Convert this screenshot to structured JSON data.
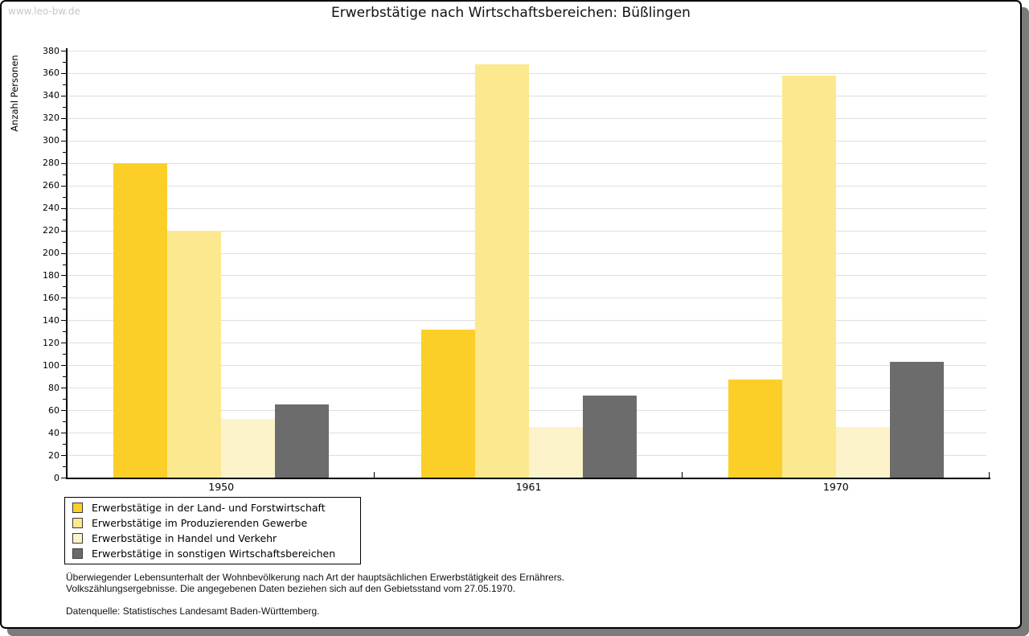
{
  "watermark": "www.leo-bw.de",
  "title": "Erwerbstätige nach Wirtschaftsbereichen: Büßlingen",
  "chart_data": {
    "type": "bar",
    "title": "Erwerbstätige nach Wirtschaftsbereichen: Büßlingen",
    "xlabel": "",
    "ylabel": "Anzahl Personen",
    "ylim": [
      0,
      380
    ],
    "ytick_step": 20,
    "yminor_step": 10,
    "grid": "horizontal-major",
    "legend_position": "bottom-left",
    "categories": [
      "1950",
      "1961",
      "1970"
    ],
    "series": [
      {
        "name": "Erwerbstätige in der Land- und Forstwirtschaft",
        "color": "#fbcf27",
        "values": [
          280,
          132,
          87
        ]
      },
      {
        "name": "Erwerbstätige im Produzierenden Gewerbe",
        "color": "#fce88f",
        "values": [
          220,
          368,
          358
        ]
      },
      {
        "name": "Erwerbstätige in Handel und Verkehr",
        "color": "#fdf3cb",
        "values": [
          52,
          45,
          45
        ]
      },
      {
        "name": "Erwerbstätige in sonstigen Wirtschaftsbereichen",
        "color": "#6c6c6c",
        "values": [
          65,
          73,
          103
        ]
      }
    ]
  },
  "footnotes": [
    "Überwiegender Lebensunterhalt der Wohnbevölkerung nach Art der hauptsächlichen Erwerbstätigkeit des Ernährers.",
    "Volkszählungsergebnisse. Die angegebenen Daten beziehen sich auf den Gebietsstand vom 27.05.1970."
  ],
  "source": "Datenquelle: Statistisches Landesamt Baden-Württemberg.",
  "colors": {
    "gridline": "#dedede",
    "axis": "#000000",
    "shadow": "#7b7b7b",
    "watermark_text": "#c6c6c6"
  }
}
